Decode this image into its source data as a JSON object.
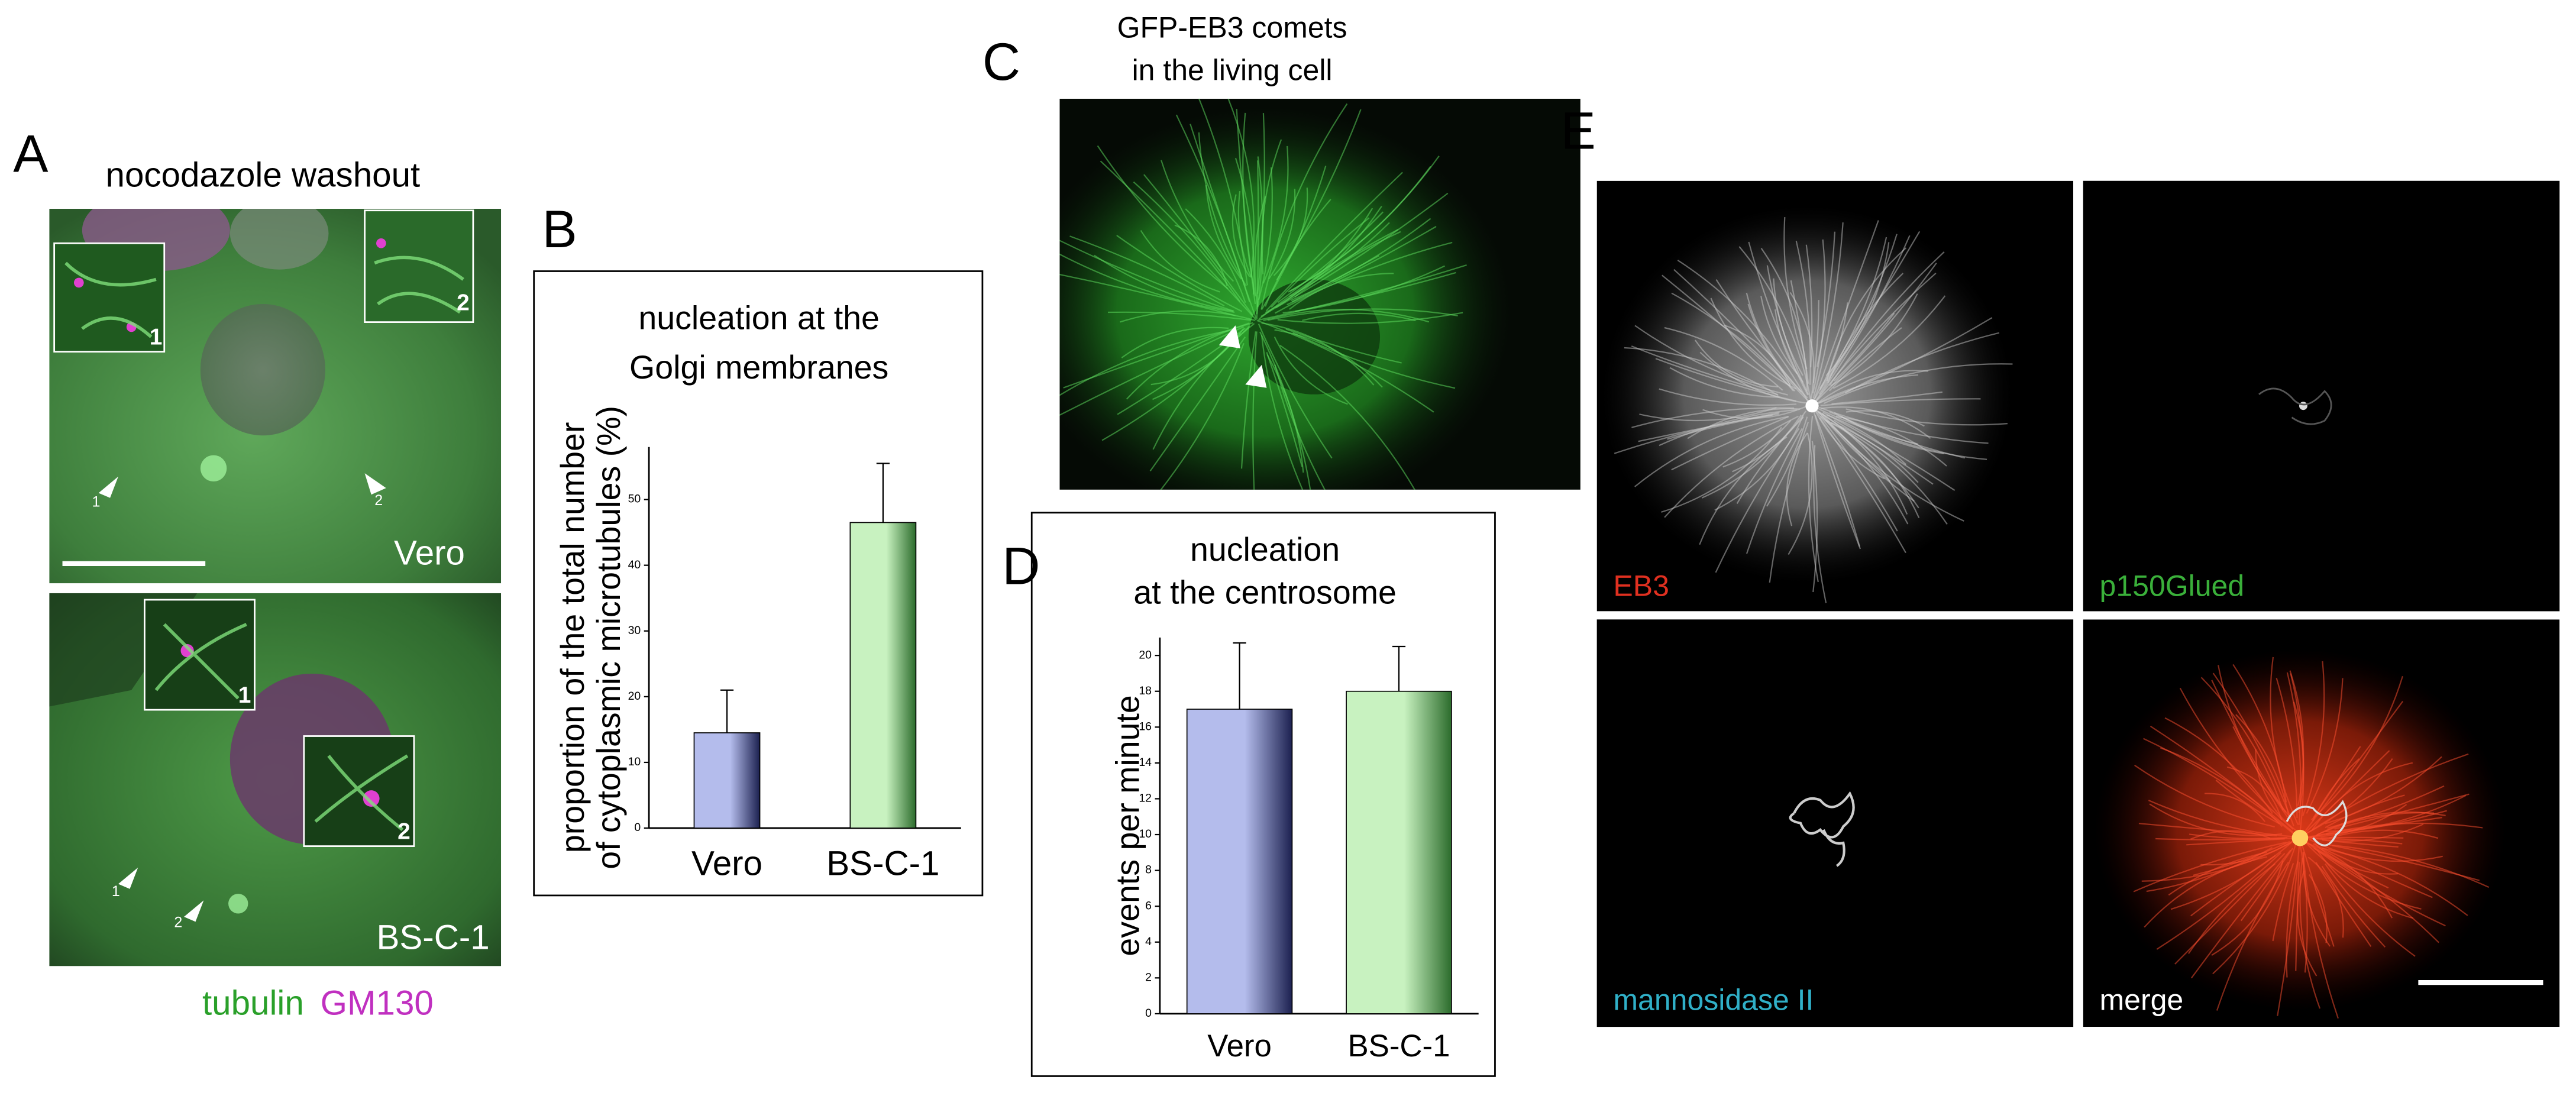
{
  "panel_labels": [
    "A",
    "B",
    "C",
    "D",
    "E"
  ],
  "panel_a": {
    "title": "nocodazole washout",
    "images": [
      {
        "label": "Vero",
        "insets": [
          "1",
          "2"
        ],
        "arrows": [
          "1",
          "2"
        ]
      },
      {
        "label": "BS-C-1",
        "insets": [
          "1",
          "2"
        ],
        "arrows": [
          "1",
          "2"
        ]
      }
    ],
    "legend": [
      "tubulin",
      "GM130"
    ]
  },
  "panel_c": {
    "title": [
      "GFP-EB3 comets",
      "in the living cell"
    ]
  },
  "panel_e": {
    "channels": [
      "EB3",
      "p150Glued",
      "mannosidase II",
      "merge"
    ]
  },
  "chart_data": [
    {
      "type": "bar",
      "title": [
        "nucleation at the",
        "Golgi membranes"
      ],
      "ylabel": [
        "proportion of the total number",
        "of cytoplasmic microtubules (%)"
      ],
      "categories": [
        "Vero",
        "BS-C-1"
      ],
      "values": [
        14.5,
        46.5
      ],
      "errors": [
        6.5,
        9
      ],
      "colors": [
        [
          "#b4bcec",
          "#1c2150"
        ],
        [
          "#c8f2c0",
          "#2c6c2c"
        ]
      ],
      "ylim": [
        0,
        58
      ],
      "yticks": [
        0,
        10,
        20,
        30,
        40,
        50
      ]
    },
    {
      "type": "bar",
      "title": [
        "nucleation",
        "at the centrosome"
      ],
      "ylabel": [
        "events per minute"
      ],
      "categories": [
        "Vero",
        "BS-C-1"
      ],
      "values": [
        17,
        18
      ],
      "errors": [
        3.7,
        2.5
      ],
      "colors": [
        [
          "#b4bcec",
          "#1c2150"
        ],
        [
          "#c8f2c0",
          "#2c6c2c"
        ]
      ],
      "ylim": [
        0,
        21
      ],
      "yticks": [
        0,
        2,
        4,
        6,
        8,
        10,
        12,
        14,
        16,
        18,
        20
      ]
    }
  ]
}
